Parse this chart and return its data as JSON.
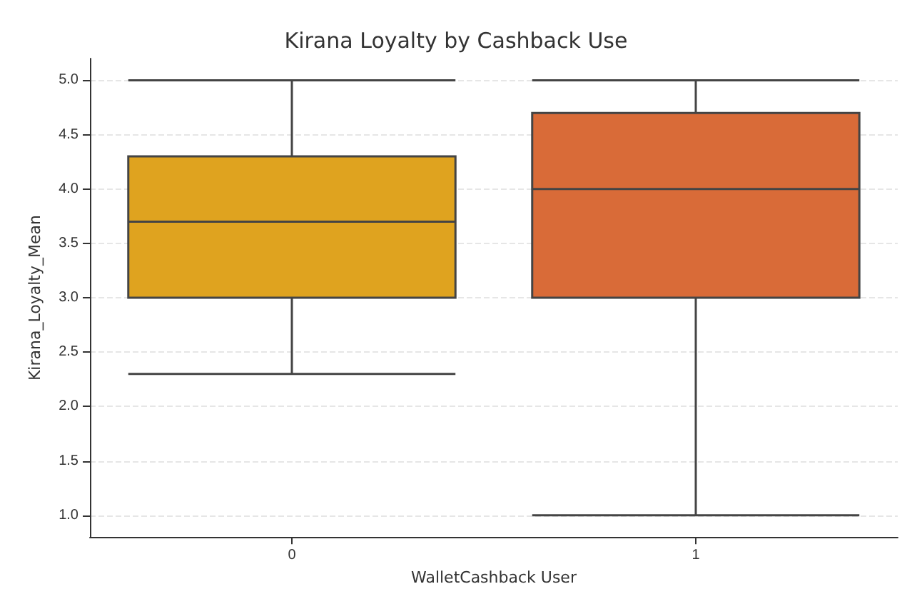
{
  "chart_data": {
    "type": "box",
    "title": "Kirana Loyalty by Cashback Use",
    "xlabel": "WalletCashback User",
    "ylabel": "Kirana_Loyalty_Mean",
    "categories": [
      "0",
      "1"
    ],
    "boxes": [
      {
        "low": 2.3,
        "q1": 3.0,
        "median": 3.7,
        "q3": 4.3,
        "high": 5.0
      },
      {
        "low": 1.0,
        "q1": 3.0,
        "median": 4.0,
        "q3": 4.7,
        "high": 5.0
      }
    ],
    "colors": [
      "#dfa31f",
      "#d96b38"
    ],
    "ylim": [
      0.8,
      5.2
    ],
    "yticks": [
      {
        "value": 1,
        "label": "1.0"
      },
      {
        "value": 1.5,
        "label": "1.5"
      },
      {
        "value": 2,
        "label": "2.0"
      },
      {
        "value": 2.5,
        "label": "2.5"
      },
      {
        "value": 3,
        "label": "3.0"
      },
      {
        "value": 3.5,
        "label": "3.5"
      },
      {
        "value": 4,
        "label": "4.0"
      },
      {
        "value": 4.5,
        "label": "4.5"
      },
      {
        "value": 5,
        "label": "5.0"
      }
    ],
    "grid": "y"
  }
}
